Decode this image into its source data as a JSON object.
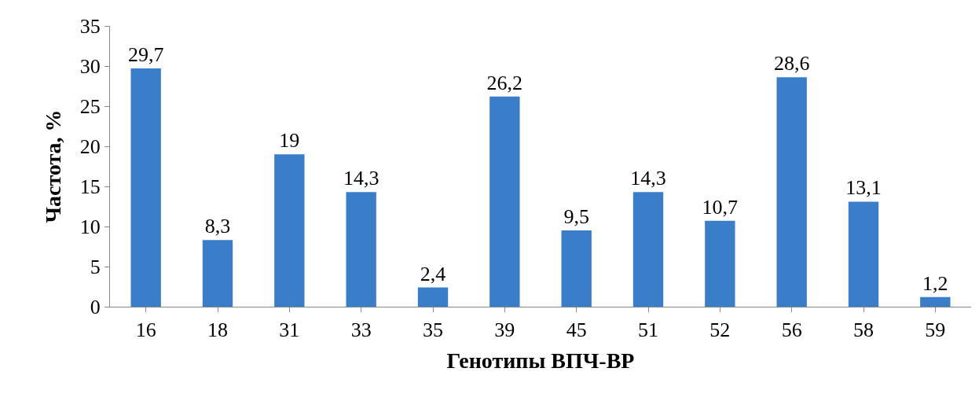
{
  "chart_data": {
    "type": "bar",
    "xlabel": "Генотипы ВПЧ-ВР",
    "ylabel": "Частота, %",
    "categories": [
      "16",
      "18",
      "31",
      "33",
      "35",
      "39",
      "45",
      "51",
      "52",
      "56",
      "58",
      "59"
    ],
    "values": [
      29.7,
      8.3,
      19,
      14.3,
      2.4,
      26.2,
      9.5,
      14.3,
      10.7,
      28.6,
      13.1,
      1.2
    ],
    "value_labels": [
      "29,7",
      "8,3",
      "19",
      "14,3",
      "2,4",
      "26,2",
      "9,5",
      "14,3",
      "10,7",
      "28,6",
      "13,1",
      "1,2"
    ],
    "color": "#3a7dc9",
    "ylim": [
      0,
      35
    ],
    "yticks": [
      0,
      5,
      10,
      15,
      20,
      25,
      30,
      35
    ]
  }
}
